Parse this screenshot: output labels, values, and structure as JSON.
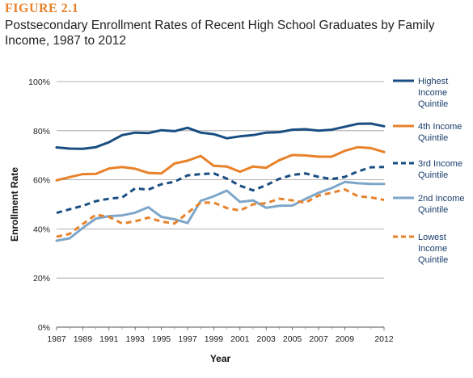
{
  "figure_label": "FIGURE 2.1",
  "title": "Postsecondary Enrollment Rates of Recent High School Graduates by Family Income, 1987 to 2012",
  "chart_data": {
    "type": "line",
    "xlabel": "Year",
    "ylabel": "Enrollment Rate",
    "xlim": [
      1987,
      2012
    ],
    "ylim": [
      0,
      100
    ],
    "x_ticks": [
      "1987",
      "1989",
      "1991",
      "1993",
      "1995",
      "1997",
      "1999",
      "2001",
      "2003",
      "2005",
      "2007",
      "2009",
      "2012"
    ],
    "y_ticks": [
      "0%",
      "20%",
      "40%",
      "60%",
      "80%",
      "100%"
    ],
    "grid": true,
    "legend_placement": "right",
    "x": [
      1987,
      1988,
      1989,
      1990,
      1991,
      1992,
      1993,
      1994,
      1995,
      1996,
      1997,
      1998,
      1999,
      2000,
      2001,
      2002,
      2003,
      2004,
      2005,
      2006,
      2007,
      2008,
      2009,
      2010,
      2011,
      2012
    ],
    "series": [
      {
        "name": "Highest Income Quintile",
        "color": "#1a4e82",
        "style": "solid",
        "values": [
          73.2,
          72.7,
          72.6,
          73.3,
          75.3,
          78.2,
          79.2,
          79.0,
          80.2,
          79.8,
          81.2,
          79.2,
          78.6,
          76.9,
          77.7,
          78.2,
          79.2,
          79.4,
          80.4,
          80.6,
          80.0,
          80.4,
          81.6,
          82.8,
          82.9,
          81.8
        ]
      },
      {
        "name": "4th Income Quintile",
        "color": "#e8822a",
        "style": "solid",
        "values": [
          59.8,
          61.1,
          62.3,
          62.4,
          64.6,
          65.2,
          64.5,
          62.8,
          62.6,
          66.6,
          67.8,
          69.7,
          65.7,
          65.4,
          63.3,
          65.4,
          64.9,
          68.0,
          70.1,
          69.9,
          69.4,
          69.4,
          71.8,
          73.3,
          72.9,
          71.3
        ]
      },
      {
        "name": "3rd Income Quintile",
        "color": "#1a4e82",
        "style": "dashed",
        "values": [
          46.5,
          48.0,
          49.4,
          51.3,
          52.3,
          52.8,
          56.5,
          56.0,
          58.2,
          59.2,
          61.8,
          62.3,
          62.6,
          60.5,
          57.6,
          55.7,
          57.8,
          60.4,
          62.0,
          62.6,
          61.2,
          60.3,
          61.2,
          63.4,
          65.1,
          65.2
        ]
      },
      {
        "name": "2nd Income Quintile",
        "color": "#7ea6c9",
        "style": "solid",
        "values": [
          35.2,
          36.2,
          40.4,
          44.2,
          45.2,
          45.5,
          46.6,
          48.8,
          44.9,
          43.9,
          42.4,
          51.4,
          53.3,
          55.6,
          51.0,
          51.6,
          48.6,
          49.4,
          49.5,
          52.2,
          54.7,
          56.6,
          59.1,
          58.6,
          58.3,
          58.3
        ]
      },
      {
        "name": "Lowest Income Quintile",
        "color": "#e8822a",
        "style": "dashed",
        "values": [
          36.8,
          38.0,
          42.0,
          45.8,
          44.9,
          42.2,
          43.1,
          44.6,
          43.0,
          42.2,
          46.5,
          50.7,
          50.7,
          48.5,
          47.5,
          50.0,
          50.5,
          52.3,
          51.6,
          50.7,
          53.6,
          54.7,
          56.1,
          53.3,
          52.8,
          51.8
        ]
      }
    ],
    "legend": [
      [
        "Highest",
        "Income",
        "Quintile"
      ],
      [
        "4th Income",
        "Quintile"
      ],
      [
        "3rd Income",
        "Quintile"
      ],
      [
        "2nd Income",
        "Quintile"
      ],
      [
        "Lowest",
        "Income",
        "Quintile"
      ]
    ]
  }
}
